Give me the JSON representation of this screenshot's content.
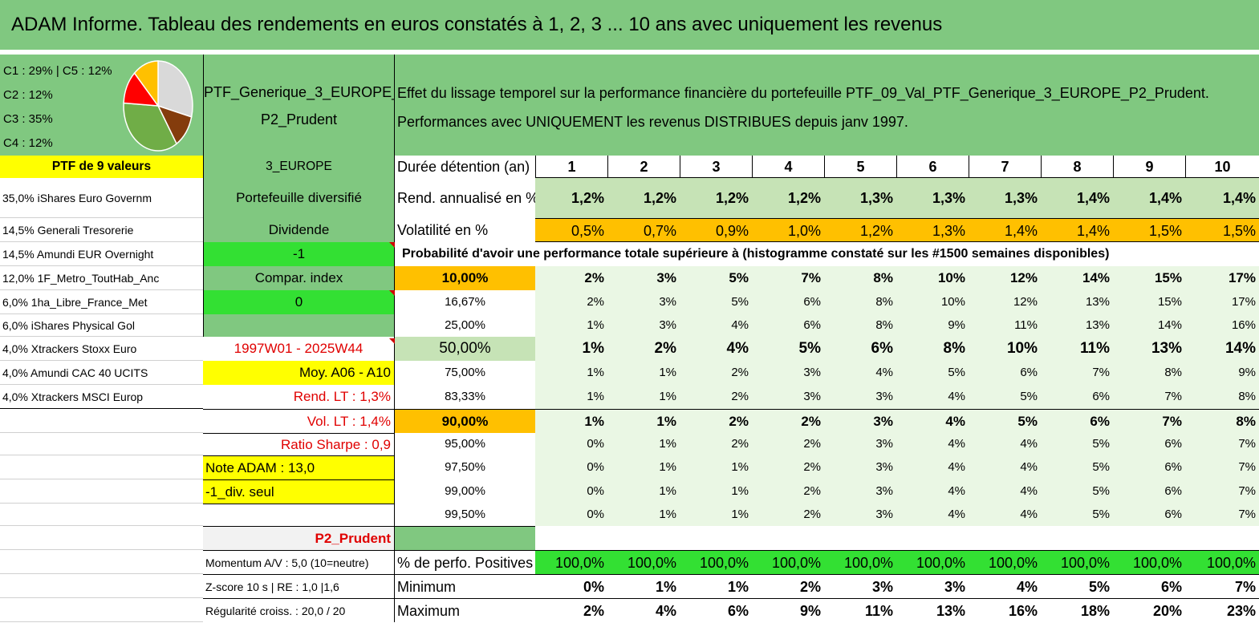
{
  "title": "ADAM Informe. Tableau des rendements en euros constatés à 1, 2, 3 ... 10 ans avec uniquement les revenus",
  "pie": {
    "legend": [
      "C1 : 29% | C5 : 12%",
      "C2 : 12%",
      "C3 : 35%",
      "C4 : 12%"
    ],
    "slices": [
      {
        "label": "C1",
        "value": 29,
        "color": "#d9d9d9"
      },
      {
        "label": "C2",
        "value": 12,
        "color": "#843c0c"
      },
      {
        "label": "C3",
        "value": 35,
        "color": "#70ad47"
      },
      {
        "label": "C4",
        "value": 12,
        "color": "#ff0000"
      },
      {
        "label": "C5",
        "value": 12,
        "color": "#ffc000"
      }
    ]
  },
  "portfolio": {
    "name_line1": "PTF_Generique_3_EUROPE_",
    "name_line2": "P2_Prudent",
    "description_line1": "Effet du lissage temporel sur la performance financière du portefeuille PTF_09_Val_PTF_Generique_3_EUROPE_P2_Prudent.",
    "description_line2": "Performances avec UNIQUEMENT les revenus DISTRIBUES depuis janv 1997.",
    "count_label": "PTF de 9 valeurs",
    "region": "3_EUROPE"
  },
  "holdings": [
    "35,0% iShares Euro Governm",
    "14,5% Generali Tresorerie",
    "14,5% Amundi EUR Overnight",
    "12,0% 1F_Metro_ToutHab_Anc",
    "6,0% 1ha_Libre_France_Met",
    "6,0% iShares Physical Gol",
    "4,0% Xtrackers Stoxx Euro",
    "4,0% Amundi CAC 40 UCITS",
    "4,0% Xtrackers MSCI Europ"
  ],
  "info": {
    "diversified": "Portefeuille diversifié",
    "dividend": "Dividende",
    "dividend_value": "-1",
    "compar_index": "Compar. index",
    "compar_value": "0",
    "period": "1997W01 - 2025W44",
    "moy": "Moy. A06 - A10",
    "rend_lt": "Rend. LT : 1,3%",
    "vol_lt": "Vol. LT : 1,4%",
    "sharpe": "Ratio Sharpe : 0,9",
    "note": "Note ADAM : 13,0",
    "div_seul": "-1_div. seul",
    "profile": "P2_Prudent",
    "momentum": "Momentum A/V : 5,0 (10=neutre)",
    "zscore": "Z-score 10 s | RE : 1,0 |1,6",
    "regularite": "Régularité croiss. : 20,0 / 20"
  },
  "table": {
    "duration_label": "Durée détention (an)",
    "years": [
      "1",
      "2",
      "3",
      "4",
      "5",
      "6",
      "7",
      "8",
      "9",
      "10"
    ],
    "rend_label": "Rend. annualisé en %",
    "rend": [
      "1,2%",
      "1,2%",
      "1,2%",
      "1,2%",
      "1,3%",
      "1,3%",
      "1,3%",
      "1,4%",
      "1,4%",
      "1,4%"
    ],
    "vol_label": "Volatilité en %",
    "vol": [
      "0,5%",
      "0,7%",
      "0,9%",
      "1,0%",
      "1,2%",
      "1,3%",
      "1,4%",
      "1,4%",
      "1,5%",
      "1,5%"
    ],
    "prob_title": "Probabilité d'avoir une performance totale supérieure à (histogramme constaté sur les #1500 semaines disponibles)",
    "prob_rows": [
      {
        "p": "10,00%",
        "v": [
          "2%",
          "3%",
          "5%",
          "7%",
          "8%",
          "10%",
          "12%",
          "14%",
          "15%",
          "17%"
        ]
      },
      {
        "p": "16,67%",
        "v": [
          "2%",
          "3%",
          "5%",
          "6%",
          "8%",
          "10%",
          "12%",
          "13%",
          "15%",
          "17%"
        ]
      },
      {
        "p": "25,00%",
        "v": [
          "1%",
          "3%",
          "4%",
          "6%",
          "8%",
          "9%",
          "11%",
          "13%",
          "14%",
          "16%"
        ]
      },
      {
        "p": "50,00%",
        "v": [
          "1%",
          "2%",
          "4%",
          "5%",
          "6%",
          "8%",
          "10%",
          "11%",
          "13%",
          "14%"
        ]
      },
      {
        "p": "75,00%",
        "v": [
          "1%",
          "1%",
          "2%",
          "3%",
          "4%",
          "5%",
          "6%",
          "7%",
          "8%",
          "9%"
        ]
      },
      {
        "p": "83,33%",
        "v": [
          "1%",
          "1%",
          "2%",
          "3%",
          "3%",
          "4%",
          "5%",
          "6%",
          "7%",
          "8%"
        ]
      },
      {
        "p": "90,00%",
        "v": [
          "1%",
          "1%",
          "2%",
          "2%",
          "3%",
          "4%",
          "5%",
          "6%",
          "7%",
          "8%"
        ]
      },
      {
        "p": "95,00%",
        "v": [
          "0%",
          "1%",
          "2%",
          "2%",
          "3%",
          "4%",
          "4%",
          "5%",
          "6%",
          "7%"
        ]
      },
      {
        "p": "97,50%",
        "v": [
          "0%",
          "1%",
          "1%",
          "2%",
          "3%",
          "4%",
          "4%",
          "5%",
          "6%",
          "7%"
        ]
      },
      {
        "p": "99,00%",
        "v": [
          "0%",
          "1%",
          "1%",
          "2%",
          "3%",
          "4%",
          "4%",
          "5%",
          "6%",
          "7%"
        ]
      },
      {
        "p": "99,50%",
        "v": [
          "0%",
          "1%",
          "1%",
          "2%",
          "3%",
          "4%",
          "4%",
          "5%",
          "6%",
          "7%"
        ]
      }
    ],
    "pos_label": "% de perfo. Positives",
    "pos": [
      "100,0%",
      "100,0%",
      "100,0%",
      "100,0%",
      "100,0%",
      "100,0%",
      "100,0%",
      "100,0%",
      "100,0%",
      "100,0%"
    ],
    "min_label": "Minimum",
    "min": [
      "0%",
      "1%",
      "1%",
      "2%",
      "3%",
      "3%",
      "4%",
      "5%",
      "6%",
      "7%"
    ],
    "max_label": "Maximum",
    "max": [
      "2%",
      "4%",
      "6%",
      "9%",
      "11%",
      "13%",
      "16%",
      "18%",
      "20%",
      "23%"
    ]
  }
}
